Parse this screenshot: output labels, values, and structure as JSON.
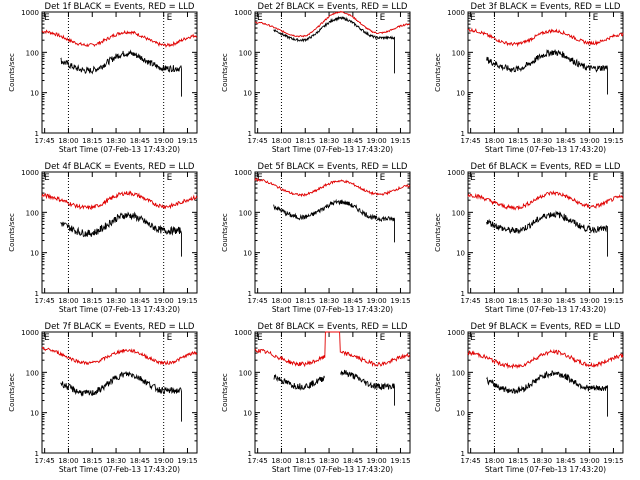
{
  "colors": {
    "events": "#000000",
    "lld": "#e00000",
    "axes": "#000000",
    "background": "#ffffff"
  },
  "chart_data": [
    {
      "type": "line",
      "title": "Det 1f BLACK = Events, RED = LLD",
      "xlabel": "Start Time (07-Feb-13 17:43:20)",
      "ylabel": "Counts/sec",
      "x_ticks": [
        "17:45",
        "18:00",
        "18:15",
        "18:30",
        "18:45",
        "19:00",
        "19:15"
      ],
      "y_ticks": [
        "1",
        "10",
        "100",
        "1000"
      ],
      "y_scale": "log",
      "ylim": [
        1,
        1000
      ],
      "markers": [
        "E",
        "E"
      ],
      "vlines": [
        "18:00",
        "19:00"
      ],
      "series": [
        {
          "color": "red",
          "profile": {
            "start": 330,
            "dip": 150,
            "peak": 320,
            "dip2": 150,
            "end": 260,
            "spike": null
          },
          "noise": 0.04
        },
        {
          "color": "black",
          "profile": {
            "start": 85,
            "dip": 35,
            "peak": 95,
            "dip2": 40,
            "end": 40,
            "drop": 8
          },
          "noise": 0.08
        }
      ]
    },
    {
      "type": "line",
      "title": "Det 2f BLACK = Events, RED = LLD",
      "xlabel": "Start Time (07-Feb-13 17:43:20)",
      "ylabel": "Counts/sec",
      "x_ticks": [
        "17:45",
        "18:00",
        "18:15",
        "18:30",
        "18:45",
        "19:00",
        "19:15"
      ],
      "y_ticks": [
        "1",
        "10",
        "100",
        "1000"
      ],
      "y_scale": "log",
      "ylim": [
        1,
        1000
      ],
      "markers": [
        "E",
        "E"
      ],
      "vlines": [
        "18:00",
        "19:00"
      ],
      "series": [
        {
          "color": "red",
          "profile": {
            "start": 550,
            "dip": 250,
            "peak": 1000,
            "dip2": 300,
            "end": 500,
            "spike": null
          },
          "noise": 0.02
        },
        {
          "color": "black",
          "profile": {
            "start": 500,
            "dip": 200,
            "peak": 700,
            "dip2": 230,
            "end": 230,
            "drop": 30
          },
          "noise": 0.03
        }
      ]
    },
    {
      "type": "line",
      "title": "Det 3f BLACK = Events, RED = LLD",
      "xlabel": "Start Time (07-Feb-13 17:43:20)",
      "ylabel": "Counts/sec",
      "x_ticks": [
        "17:45",
        "18:00",
        "18:15",
        "18:30",
        "18:45",
        "19:00",
        "19:15"
      ],
      "y_ticks": [
        "1",
        "10",
        "100",
        "1000"
      ],
      "y_scale": "log",
      "ylim": [
        1,
        1000
      ],
      "markers": [
        "E",
        "E"
      ],
      "vlines": [
        "18:00",
        "19:00"
      ],
      "series": [
        {
          "color": "red",
          "profile": {
            "start": 360,
            "dip": 160,
            "peak": 340,
            "dip2": 170,
            "end": 280,
            "spike": null
          },
          "noise": 0.04
        },
        {
          "color": "black",
          "profile": {
            "start": 90,
            "dip": 38,
            "peak": 100,
            "dip2": 40,
            "end": 45,
            "drop": 9
          },
          "noise": 0.08
        }
      ]
    },
    {
      "type": "line",
      "title": "Det 4f BLACK = Events, RED = LLD",
      "xlabel": "Start Time (07-Feb-13 17:43:20)",
      "ylabel": "Counts/sec",
      "x_ticks": [
        "17:45",
        "18:00",
        "18:15",
        "18:30",
        "18:45",
        "19:00",
        "19:15"
      ],
      "y_ticks": [
        "1",
        "10",
        "100",
        "1000"
      ],
      "y_scale": "log",
      "ylim": [
        1,
        1000
      ],
      "markers": [
        "E",
        "E"
      ],
      "vlines": [
        "18:00",
        "19:00"
      ],
      "series": [
        {
          "color": "red",
          "profile": {
            "start": 260,
            "dip": 130,
            "peak": 300,
            "dip2": 140,
            "end": 230,
            "spike": null
          },
          "noise": 0.05
        },
        {
          "color": "black",
          "profile": {
            "start": 75,
            "dip": 30,
            "peak": 85,
            "dip2": 35,
            "end": 35,
            "drop": 8
          },
          "noise": 0.09
        }
      ]
    },
    {
      "type": "line",
      "title": "Det 5f BLACK = Events, RED = LLD",
      "xlabel": "Start Time (07-Feb-13 17:43:20)",
      "ylabel": "Counts/sec",
      "x_ticks": [
        "17:45",
        "18:00",
        "18:15",
        "18:30",
        "18:45",
        "19:00",
        "19:15"
      ],
      "y_ticks": [
        "1",
        "10",
        "100",
        "1000"
      ],
      "y_scale": "log",
      "ylim": [
        1,
        1000
      ],
      "markers": [
        "E",
        "E"
      ],
      "vlines": [
        "18:00",
        "19:00"
      ],
      "series": [
        {
          "color": "red",
          "profile": {
            "start": 650,
            "dip": 270,
            "peak": 600,
            "dip2": 280,
            "end": 450,
            "spike": null
          },
          "noise": 0.03
        },
        {
          "color": "black",
          "profile": {
            "start": 200,
            "dip": 75,
            "peak": 180,
            "dip2": 70,
            "end": 65,
            "drop": 18
          },
          "noise": 0.06
        }
      ]
    },
    {
      "type": "line",
      "title": "Det 6f BLACK = Events, RED = LLD",
      "xlabel": "Start Time (07-Feb-13 17:43:20)",
      "ylabel": "Counts/sec",
      "x_ticks": [
        "17:45",
        "18:00",
        "18:15",
        "18:30",
        "18:45",
        "19:00",
        "19:15"
      ],
      "y_ticks": [
        "1",
        "10",
        "100",
        "1000"
      ],
      "y_scale": "log",
      "ylim": [
        1,
        1000
      ],
      "markers": [
        "E",
        "E"
      ],
      "vlines": [
        "18:00",
        "19:00"
      ],
      "series": [
        {
          "color": "red",
          "profile": {
            "start": 270,
            "dip": 130,
            "peak": 300,
            "dip2": 140,
            "end": 240,
            "spike": null
          },
          "noise": 0.05
        },
        {
          "color": "black",
          "profile": {
            "start": 80,
            "dip": 35,
            "peak": 90,
            "dip2": 38,
            "end": 40,
            "drop": 8
          },
          "noise": 0.08
        }
      ]
    },
    {
      "type": "line",
      "title": "Det 7f BLACK = Events, RED = LLD",
      "xlabel": "Start Time (07-Feb-13 17:43:20)",
      "ylabel": "Counts/sec",
      "x_ticks": [
        "17:45",
        "18:00",
        "18:15",
        "18:30",
        "18:45",
        "19:00",
        "19:15"
      ],
      "y_ticks": [
        "1",
        "10",
        "100",
        "1000"
      ],
      "y_scale": "log",
      "ylim": [
        1,
        1000
      ],
      "markers": [
        "E",
        "E"
      ],
      "vlines": [
        "18:00",
        "19:00"
      ],
      "series": [
        {
          "color": "red",
          "profile": {
            "start": 380,
            "dip": 170,
            "peak": 350,
            "dip2": 170,
            "end": 300,
            "spike": null
          },
          "noise": 0.04
        },
        {
          "color": "black",
          "profile": {
            "start": 75,
            "dip": 30,
            "peak": 90,
            "dip2": 35,
            "end": 35,
            "drop": 6
          },
          "noise": 0.08
        }
      ]
    },
    {
      "type": "line",
      "title": "Det 8f BLACK = Events, RED = LLD",
      "xlabel": "Start Time (07-Feb-13 17:43:20)",
      "ylabel": "Counts/sec",
      "x_ticks": [
        "17:45",
        "18:00",
        "18:15",
        "18:30",
        "18:45",
        "19:00",
        "19:15"
      ],
      "y_ticks": [
        "1",
        "10",
        "100",
        "1000"
      ],
      "y_scale": "log",
      "ylim": [
        1,
        1000
      ],
      "markers": [
        "E",
        "E"
      ],
      "vlines": [
        "18:00",
        "19:00"
      ],
      "series": [
        {
          "color": "red",
          "profile": {
            "start": 350,
            "dip": 160,
            "peak": 300,
            "dip2": 160,
            "end": 260,
            "spike": [
              0.45,
              0.55
            ]
          },
          "noise": 0.05
        },
        {
          "color": "black",
          "profile": {
            "start": 110,
            "dip": 45,
            "peak": 100,
            "dip2": 45,
            "end": 45,
            "drop": 15,
            "gap": [
              0.45,
              0.55
            ]
          },
          "noise": 0.08
        }
      ]
    },
    {
      "type": "line",
      "title": "Det 9f BLACK = Events, RED = LLD",
      "xlabel": "Start Time (07-Feb-13 17:43:20)",
      "ylabel": "Counts/sec",
      "x_ticks": [
        "17:45",
        "18:00",
        "18:15",
        "18:30",
        "18:45",
        "19:00",
        "19:15"
      ],
      "y_ticks": [
        "1",
        "10",
        "100",
        "1000"
      ],
      "y_scale": "log",
      "ylim": [
        1,
        1000
      ],
      "markers": [
        "E",
        "E"
      ],
      "vlines": [
        "18:00",
        "19:00"
      ],
      "series": [
        {
          "color": "red",
          "profile": {
            "start": 300,
            "dip": 140,
            "peak": 320,
            "dip2": 150,
            "end": 260,
            "spike": null
          },
          "noise": 0.05
        },
        {
          "color": "black",
          "profile": {
            "start": 85,
            "dip": 35,
            "peak": 95,
            "dip2": 40,
            "end": 40,
            "drop": 8
          },
          "noise": 0.08
        }
      ]
    }
  ]
}
